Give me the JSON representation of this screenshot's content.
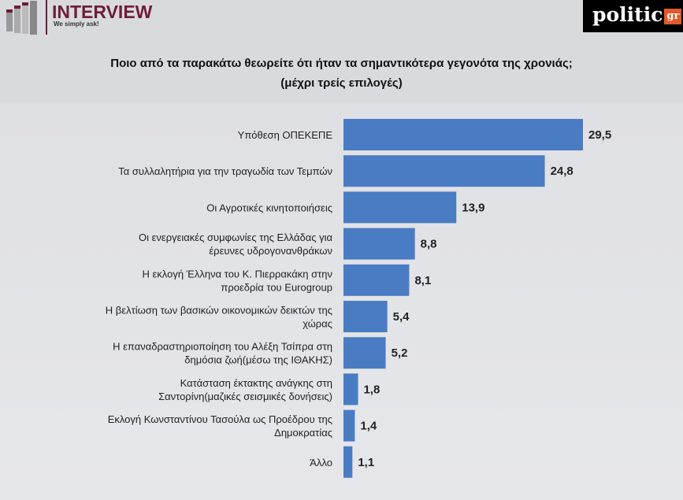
{
  "header": {
    "brand": "INTERVIEW",
    "tagline": "We simply ask!",
    "source_logo": "politic",
    "source_logo_suffix": "gr"
  },
  "chart_data": {
    "type": "bar",
    "orientation": "horizontal",
    "title": "Ποιο από τα παρακάτω θεωρείτε ότι ήταν τα σημαντικότερα γεγονότα της χρονιάς;",
    "subtitle": "(μέχρι τρείς επιλογές)",
    "bar_color": "#4a7cc4",
    "categories": [
      [
        "Υπόθεση ΟΠΕΚΕΠΕ"
      ],
      [
        "Τα συλλαλητήρια για την τραγωδία των Τεμπών"
      ],
      [
        "Οι Αγροτικές κινητοποιήσεις"
      ],
      [
        "Οι ενεργειακές συμφωνίες της Ελλάδας για",
        "έρευνες υδρογονανθράκων"
      ],
      [
        "Η εκλογή Έλληνα του Κ. Πιερρακάκη στην",
        "προεδρία του Eurogroup"
      ],
      [
        "Η βελτίωση των βασικών οικονομικών δεικτών της",
        "χώρας"
      ],
      [
        "Η επαναδραστηριοποίηση του Αλέξη Τσίπρα στη",
        "δημόσια ζωή(μέσω της ΙΘΑΚΗΣ)"
      ],
      [
        "Κατάσταση έκτακτης ανάγκης στη",
        "Σαντορίνη(μαζικές σεισμικές δονήσεις)"
      ],
      [
        "Εκλογή Κωνσταντίνου Τασούλα ως Προέδρου της",
        "Δημοκρατίας"
      ],
      [
        "Άλλο"
      ]
    ],
    "values": [
      29.5,
      24.8,
      13.9,
      8.8,
      8.1,
      5.4,
      5.2,
      1.8,
      1.4,
      1.1
    ],
    "value_labels": [
      "29,5",
      "24,8",
      "13,9",
      "8,8",
      "8,1",
      "5,4",
      "5,2",
      "1,8",
      "1,4",
      "1,1"
    ]
  }
}
